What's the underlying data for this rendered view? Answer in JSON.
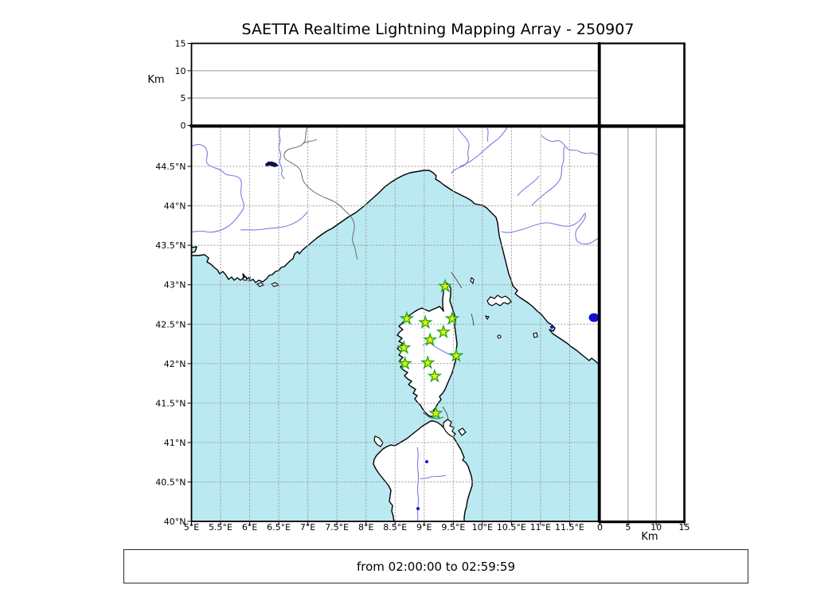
{
  "title": "SAETTA Realtime Lightning Mapping Array - 250907",
  "footer": {
    "time_range": "from 02:00:00 to 02:59:59"
  },
  "map_axes": {
    "lon_min": 5,
    "lon_max": 12,
    "lat_min": 40,
    "lat_max": 45,
    "x_ticks": [
      {
        "value": 5,
        "label": "5°E"
      },
      {
        "value": 5.5,
        "label": "5.5°E"
      },
      {
        "value": 6,
        "label": "6°E"
      },
      {
        "value": 6.5,
        "label": "6.5°E"
      },
      {
        "value": 7,
        "label": "7°E"
      },
      {
        "value": 7.5,
        "label": "7.5°E"
      },
      {
        "value": 8,
        "label": "8°E"
      },
      {
        "value": 8.5,
        "label": "8.5°E"
      },
      {
        "value": 9,
        "label": "9°E"
      },
      {
        "value": 9.5,
        "label": "9.5°E"
      },
      {
        "value": 10,
        "label": "10°E"
      },
      {
        "value": 10.5,
        "label": "10.5°E"
      },
      {
        "value": 11,
        "label": "11°E"
      },
      {
        "value": 11.5,
        "label": "11.5°E"
      }
    ],
    "y_ticks": [
      {
        "value": 40,
        "label": "40°N"
      },
      {
        "value": 40.5,
        "label": "40.5°N"
      },
      {
        "value": 41,
        "label": "41°N"
      },
      {
        "value": 41.5,
        "label": "41.5°N"
      },
      {
        "value": 42,
        "label": "42°N"
      },
      {
        "value": 42.5,
        "label": "42.5°N"
      },
      {
        "value": 43,
        "label": "43°N"
      },
      {
        "value": 43.5,
        "label": "43.5°N"
      },
      {
        "value": 44,
        "label": "44°N"
      },
      {
        "value": 44.5,
        "label": "44.5°N"
      }
    ]
  },
  "altitude_axes": {
    "unit_label": "Km",
    "min": 0,
    "max": 15,
    "ticks": [
      {
        "value": 0,
        "label": "0"
      },
      {
        "value": 5,
        "label": "5"
      },
      {
        "value": 10,
        "label": "10"
      },
      {
        "value": 15,
        "label": "15"
      }
    ],
    "gridlines": [
      5,
      10
    ]
  },
  "stations": [
    {
      "lon": 9.36,
      "lat": 42.98
    },
    {
      "lon": 8.7,
      "lat": 42.57
    },
    {
      "lon": 9.02,
      "lat": 42.52
    },
    {
      "lon": 9.48,
      "lat": 42.57
    },
    {
      "lon": 9.33,
      "lat": 42.4
    },
    {
      "lon": 9.1,
      "lat": 42.3
    },
    {
      "lon": 8.65,
      "lat": 42.2
    },
    {
      "lon": 9.55,
      "lat": 42.1
    },
    {
      "lon": 8.67,
      "lat": 42.0
    },
    {
      "lon": 9.06,
      "lat": 42.01
    },
    {
      "lon": 9.18,
      "lat": 41.84
    },
    {
      "lon": 9.2,
      "lat": 41.37
    }
  ],
  "colors": {
    "sea": "#bae9f2",
    "land": "#ffffff",
    "coast": "#000000",
    "river": "#7b7be0",
    "country_border": "#6b6b6b",
    "contour_line": "#444444",
    "lake": "#1313cf",
    "alpine_lake": "#0d0d52",
    "map_grid": "#999999",
    "panel_grid": "#999999",
    "station_fill": "#ffe800",
    "station_edge": "#1fae1f"
  },
  "chart_data": {
    "type": "scatter",
    "title": "SAETTA Realtime Lightning Mapping Array - 250907",
    "time_window": "from 02:00:00 to 02:59:59",
    "map_extent": {
      "lon": [
        5,
        12
      ],
      "lat": [
        40,
        45
      ]
    },
    "altitude_km_range": [
      0,
      15
    ],
    "altitude_grid_km": [
      5,
      10
    ],
    "stations_lonlat": [
      [
        9.36,
        42.98
      ],
      [
        8.7,
        42.57
      ],
      [
        9.02,
        42.52
      ],
      [
        9.48,
        42.57
      ],
      [
        9.33,
        42.4
      ],
      [
        9.1,
        42.3
      ],
      [
        8.65,
        42.2
      ],
      [
        9.55,
        42.1
      ],
      [
        8.67,
        42.0
      ],
      [
        9.06,
        42.01
      ],
      [
        9.18,
        41.84
      ],
      [
        9.2,
        41.37
      ]
    ],
    "lightning_points": [],
    "legend_position": "none",
    "grid": true
  }
}
